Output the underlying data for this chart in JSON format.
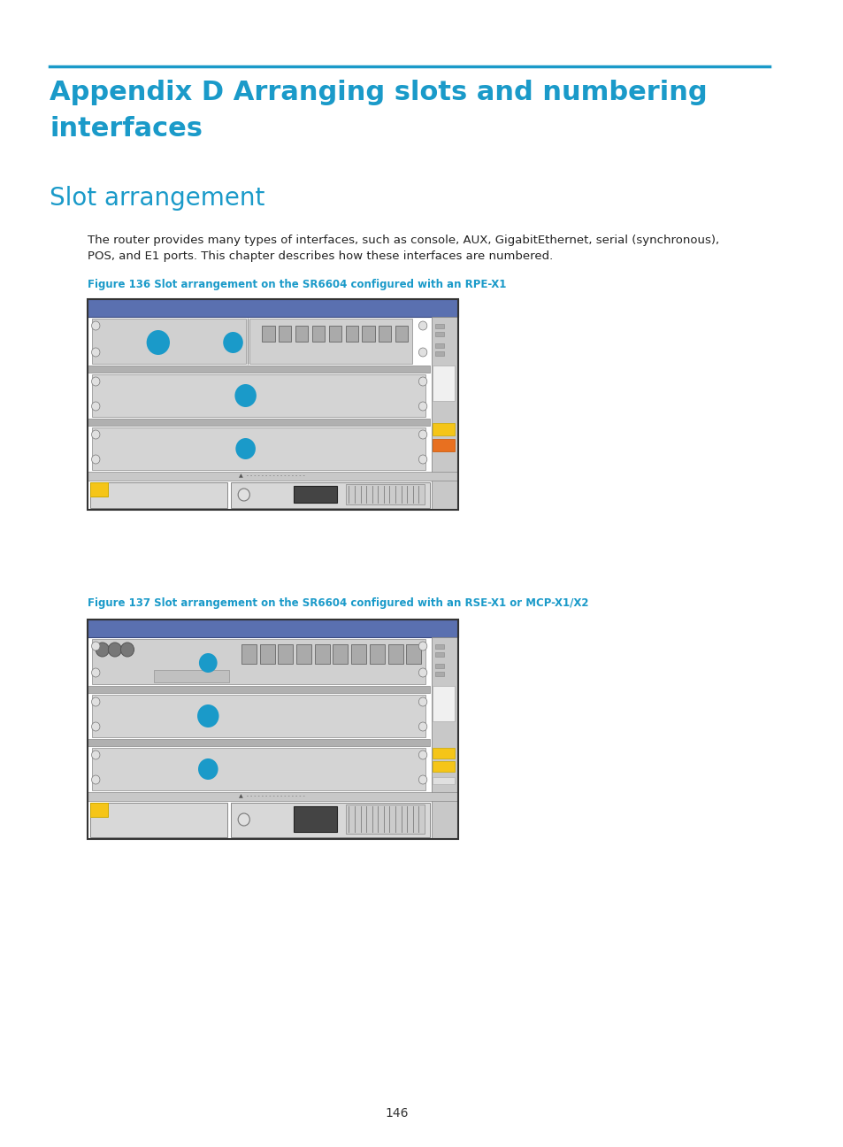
{
  "bg_color": "#ffffff",
  "title_line_color": "#1a9ac9",
  "title_text": "Appendix D Arranging slots and numbering\ninterfaces",
  "title_color": "#1a9ac9",
  "title_fontsize": 22,
  "section_title": "Slot arrangement",
  "section_title_color": "#1a9ac9",
  "section_title_fontsize": 20,
  "body_text": "The router provides many types of interfaces, such as console, AUX, GigabitEthernet, serial (synchronous),\nPOS, and E1 ports. This chapter describes how these interfaces are numbered.",
  "body_fontsize": 9.5,
  "fig136_caption": "Figure 136 Slot arrangement on the SR6604 configured with an RPE-X1",
  "fig137_caption": "Figure 137 Slot arrangement on the SR6604 configured with an RSE-X1 or MCP-X1/X2",
  "caption_color": "#1a9ac9",
  "caption_fontsize": 8.5,
  "page_number": "146",
  "dot_color": "#1a9ac9"
}
